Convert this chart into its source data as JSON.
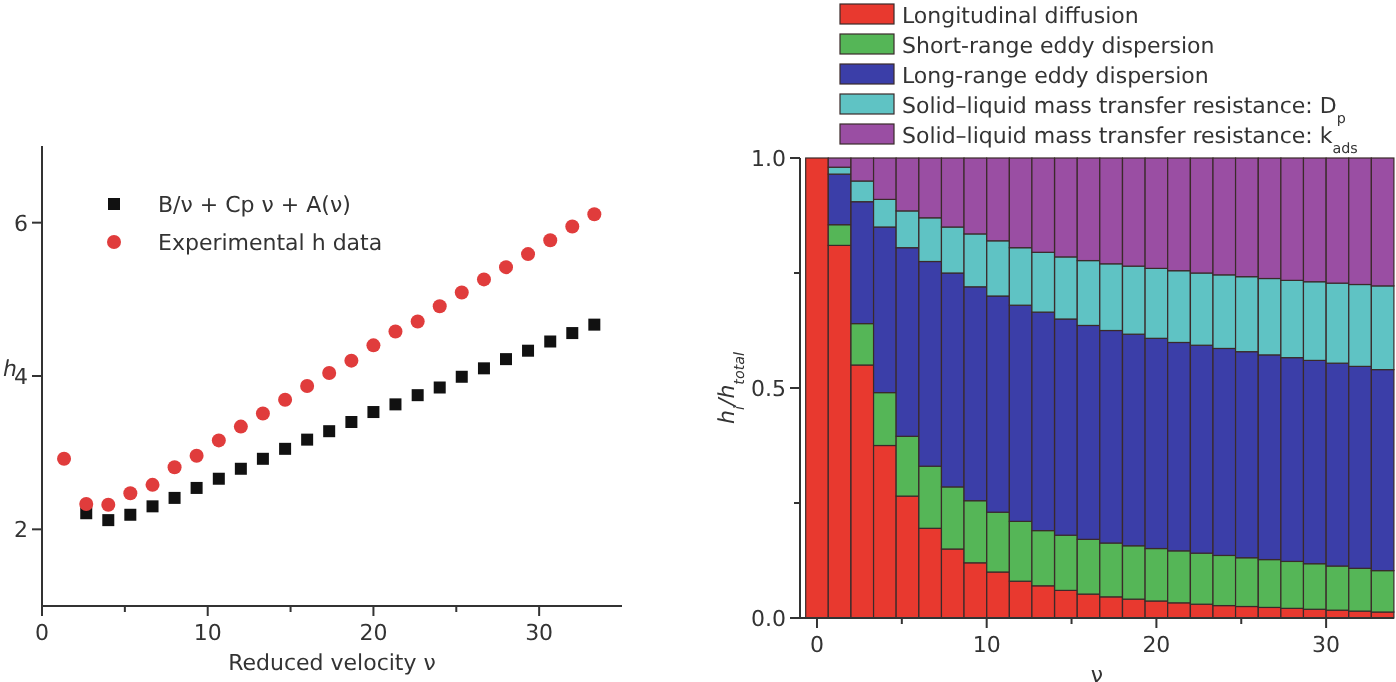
{
  "chart_data": [
    {
      "type": "scatter",
      "xlabel": "Reduced velocity ν",
      "ylabel": "h",
      "xlim": [
        0,
        35
      ],
      "ylim": [
        1,
        7
      ],
      "xticks": [
        0,
        {
          "value": 5,
          "label": null
        },
        10,
        {
          "value": 15,
          "label": null
        },
        20,
        {
          "value": 25,
          "label": null
        },
        30
      ],
      "yticks": [
        2,
        4,
        6
      ],
      "legend": "top left",
      "x": [
        1.33,
        2.67,
        4,
        5.33,
        6.67,
        8,
        9.33,
        10.67,
        12,
        13.33,
        14.67,
        16,
        17.33,
        18.67,
        20,
        21.33,
        22.67,
        24,
        25.33,
        26.67,
        28,
        29.33,
        30.67,
        32,
        33.33
      ],
      "series": [
        {
          "name": "B/ν + Cp ν + A(ν)",
          "color": "#111111",
          "marker": "square",
          "values": [
            null,
            2.21,
            2.12,
            2.19,
            2.3,
            2.41,
            2.54,
            2.66,
            2.79,
            2.92,
            3.05,
            3.17,
            3.28,
            3.4,
            3.53,
            3.63,
            3.75,
            3.85,
            3.99,
            4.1,
            4.22,
            4.33,
            4.45,
            4.56,
            4.67
          ]
        },
        {
          "name": "Experimental h data",
          "color": "#e03c3c",
          "marker": "circle",
          "values": [
            2.92,
            2.33,
            2.32,
            2.47,
            2.58,
            2.81,
            2.96,
            3.16,
            3.34,
            3.51,
            3.69,
            3.87,
            4.04,
            4.2,
            4.4,
            4.58,
            4.71,
            4.91,
            5.09,
            5.26,
            5.42,
            5.59,
            5.77,
            5.95,
            6.11
          ]
        }
      ]
    },
    {
      "type": "bar",
      "stacked": true,
      "xlabel": "ν",
      "ylabel": "h$_{i}$/h$_{total}$",
      "xlim": [
        -1,
        34
      ],
      "ylim": [
        0,
        1
      ],
      "xticks": [
        0,
        {
          "value": 5,
          "label": null
        },
        10,
        {
          "value": 15,
          "label": null
        },
        20,
        {
          "value": 25,
          "label": null
        },
        30
      ],
      "yticks": [
        {
          "value": 0,
          "label": "0.0"
        },
        {
          "value": 0.25,
          "label": null
        },
        0.5,
        {
          "value": 0.75,
          "label": null
        },
        {
          "value": 1,
          "label": "1.0"
        }
      ],
      "legend": "top",
      "x": [
        0,
        1.33,
        2.67,
        4,
        5.33,
        6.67,
        8,
        9.33,
        10.67,
        12,
        13.33,
        14.67,
        16,
        17.33,
        18.67,
        20,
        21.33,
        22.67,
        24,
        25.33,
        26.67,
        28,
        29.33,
        30.67,
        32,
        33.33
      ],
      "series": [
        {
          "name": "Longitudinal diffusion",
          "color": "#e8392f",
          "values": [
            1,
            0.81,
            0.55,
            0.375,
            0.265,
            0.195,
            0.15,
            0.12,
            0.1,
            0.08,
            0.07,
            0.06,
            0.052,
            0.046,
            0.041,
            0.037,
            0.033,
            0.03,
            0.027,
            0.025,
            0.023,
            0.021,
            0.019,
            0.017,
            0.015,
            0.013
          ]
        },
        {
          "name": "Short-range eddy dispersion",
          "color": "#55b657",
          "values": [
            0,
            0.045,
            0.09,
            0.115,
            0.13,
            0.135,
            0.135,
            0.135,
            0.13,
            0.13,
            0.12,
            0.12,
            0.119,
            0.117,
            0.116,
            0.114,
            0.113,
            0.111,
            0.109,
            0.106,
            0.104,
            0.102,
            0.099,
            0.096,
            0.093,
            0.09
          ]
        },
        {
          "name": "Long-range eddy dispersion",
          "color": "#3b3ea8",
          "values": [
            0,
            0.11,
            0.265,
            0.36,
            0.41,
            0.445,
            0.465,
            0.465,
            0.47,
            0.47,
            0.475,
            0.47,
            0.465,
            0.462,
            0.46,
            0.457,
            0.453,
            0.452,
            0.45,
            0.448,
            0.445,
            0.443,
            0.442,
            0.441,
            0.439,
            0.437
          ]
        },
        {
          "name": "Solid–liquid mass transfer resistance: D$_{p}$",
          "color": "#5fc3c4",
          "values": [
            0,
            0.015,
            0.045,
            0.06,
            0.08,
            0.095,
            0.1,
            0.115,
            0.12,
            0.125,
            0.13,
            0.135,
            0.141,
            0.145,
            0.148,
            0.152,
            0.156,
            0.157,
            0.16,
            0.163,
            0.166,
            0.168,
            0.171,
            0.174,
            0.178,
            0.182
          ]
        },
        {
          "name": "Solid–liquid mass transfer resistance: k$_{ads}$",
          "color": "#9a4ea3",
          "values": [
            0,
            0.02,
            0.05,
            0.09,
            0.115,
            0.13,
            0.15,
            0.165,
            0.18,
            0.195,
            0.205,
            0.215,
            0.223,
            0.23,
            0.235,
            0.24,
            0.245,
            0.25,
            0.254,
            0.258,
            0.262,
            0.266,
            0.269,
            0.272,
            0.275,
            0.278
          ]
        }
      ]
    }
  ]
}
